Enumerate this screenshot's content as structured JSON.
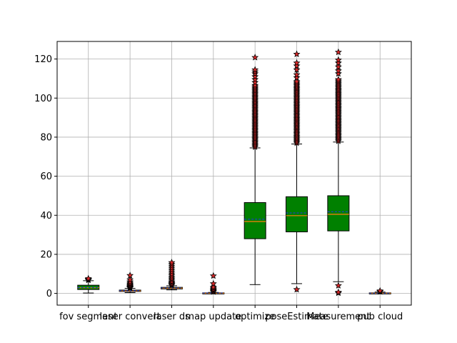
{
  "chart_data": {
    "type": "box",
    "title": "",
    "xlabel": "",
    "ylabel": "",
    "ylim": [
      -6,
      129
    ],
    "yticks": [
      0,
      20,
      40,
      60,
      80,
      100,
      120
    ],
    "grid": true,
    "colors": {
      "box_fill": "#008000",
      "median": "#ff7f0e",
      "mean": "#1f3fbf",
      "flier_face": "#d62728",
      "flier_edge": "#000000",
      "grid": "#b0b0b0"
    },
    "categories": [
      "fov segment",
      "laser convert",
      "laser ds",
      "map update",
      "optimize",
      "poseEstimate",
      "Measurement",
      "pub cloud"
    ],
    "boxes": [
      {
        "whislo": 0.2,
        "q1": 2.0,
        "med": 2.9,
        "mean": 3.0,
        "q3": 4.2,
        "whishi": 6.5,
        "fliers": [
          6.8,
          7.0,
          7.3,
          7.6
        ]
      },
      {
        "whislo": 0.4,
        "q1": 1.0,
        "med": 1.3,
        "mean": 1.4,
        "q3": 1.7,
        "whishi": 2.6,
        "fliers": [
          2.8,
          3.0,
          3.3,
          3.6,
          4.0,
          4.4,
          4.8,
          5.3,
          6.0,
          7.0,
          9.2
        ]
      },
      {
        "whislo": 1.8,
        "q1": 2.3,
        "med": 2.7,
        "mean": 2.8,
        "q3": 3.1,
        "whishi": 3.9,
        "fliers": [
          4.2,
          4.6,
          5.0,
          5.5,
          6.0,
          6.8,
          7.5,
          8.3,
          9.2,
          10.0,
          11.0,
          12.0,
          13.0,
          14.0,
          15.0,
          15.8
        ]
      },
      {
        "whislo": 0.0,
        "q1": 0.0,
        "med": 0.1,
        "mean": 0.2,
        "q3": 0.3,
        "whishi": 0.5,
        "fliers": [
          0.8,
          1.2,
          1.6,
          2.0,
          2.6,
          3.2,
          5.0,
          9.0
        ]
      },
      {
        "whislo": 4.5,
        "q1": 28.0,
        "med": 36.8,
        "mean": 38.0,
        "q3": 46.5,
        "whishi": 74.5,
        "fliers_range": [
          75,
          107
        ],
        "fliers": [
          108,
          109.5,
          111,
          112.5,
          113.5,
          114.5,
          120.8
        ]
      },
      {
        "whislo": 5.0,
        "q1": 31.5,
        "med": 39.8,
        "mean": 41.2,
        "q3": 49.5,
        "whishi": 76.5,
        "fliers_range": [
          77,
          109
        ],
        "fliers": [
          2.0,
          110.5,
          112,
          114.5,
          116.5,
          118,
          122.5
        ]
      },
      {
        "whislo": 6.0,
        "q1": 32.0,
        "med": 40.5,
        "mean": 41.8,
        "q3": 50.0,
        "whishi": 77.5,
        "fliers_range": [
          78,
          110
        ],
        "fliers": [
          0.2,
          0.6,
          4.0,
          112.5,
          114,
          116,
          118,
          119.5,
          123.5
        ]
      },
      {
        "whislo": 0.0,
        "q1": 0.0,
        "med": 0.1,
        "mean": 0.1,
        "q3": 0.3,
        "whishi": 0.7,
        "fliers": [
          0.9,
          1.1,
          1.3
        ]
      }
    ]
  }
}
